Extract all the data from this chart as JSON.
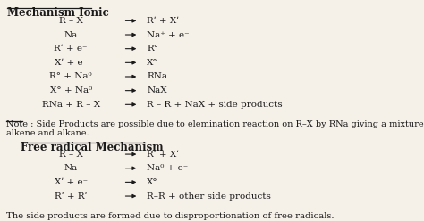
{
  "bg_color": "#f5f0e8",
  "text_color": "#1a1a1a",
  "title1": "Mechanism Ionic",
  "title2": "Free radical Mechanism",
  "ionic_lines": [
    [
      "R – X",
      "Rʹ + Xʹ"
    ],
    [
      "Na",
      "Na⁺ + e⁻"
    ],
    [
      "Rʹ + e⁻",
      "R°"
    ],
    [
      "Xʹ + e⁻",
      "X°"
    ],
    [
      "R° + Na⁰",
      "RNa"
    ],
    [
      "X° + Na⁰",
      "NaX"
    ],
    [
      "RNa + R – X",
      "R – R + NaX + side products"
    ]
  ],
  "free_lines": [
    [
      "R – X",
      "Rʹ + Xʹ"
    ],
    [
      "Na",
      "Na⁰ + e⁻"
    ],
    [
      "Xʹ + e⁻",
      "X°"
    ],
    [
      "Rʹ + Rʹ",
      "R–R + other side products"
    ]
  ],
  "note_text": "Note : Side Products are possible due to elemination reaction on R–X by RNa giving a mixture of\nalkene and alkane.",
  "footer_text": "The side products are formed due to disproportionation of free radicals.",
  "fontsize": 7.5,
  "title_fontsize": 8.5
}
